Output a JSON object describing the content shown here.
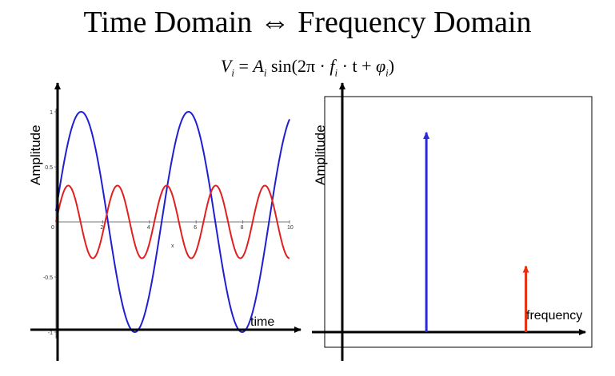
{
  "title": "Time Domain ⇔ Frequency Domain",
  "formula": {
    "lhs": "V",
    "lhs_sub": "i",
    "eq": " = ",
    "amp": "A",
    "amp_sub": "i",
    "fn": " sin(2π · ",
    "freq": "f",
    "freq_sub": "i",
    "mid": " · t + ",
    "phase": "φ",
    "phase_sub": "i",
    "close": ")"
  },
  "chart_data": [
    {
      "type": "line",
      "xlabel": "time",
      "ylabel": "Amplitude",
      "inner_axis_label": "x",
      "x_ticks": [
        "0",
        "2",
        "4",
        "6",
        "8",
        "10"
      ],
      "y_ticks": [
        "1",
        "0.5",
        "0",
        "-0.5",
        "-1"
      ],
      "xlim": [
        0,
        10
      ],
      "ylim": [
        -1,
        1
      ],
      "series": [
        {
          "color": "#1f1fd0",
          "amplitude": 1.0,
          "frequency": 0.2175,
          "phase": 0.1
        },
        {
          "color": "#e02020",
          "amplitude": 0.33,
          "frequency": 0.475,
          "phase": 0.0
        }
      ]
    },
    {
      "type": "bar",
      "xlabel": "frequency",
      "ylabel": "Amplitude",
      "bars": [
        {
          "color": "#2a2ad8",
          "frequency": 0.2175,
          "amplitude": 1.0
        },
        {
          "color": "#e83010",
          "frequency": 0.475,
          "amplitude": 0.33
        }
      ],
      "xlim": [
        0,
        0.6
      ],
      "ylim": [
        0,
        1.3
      ]
    }
  ]
}
